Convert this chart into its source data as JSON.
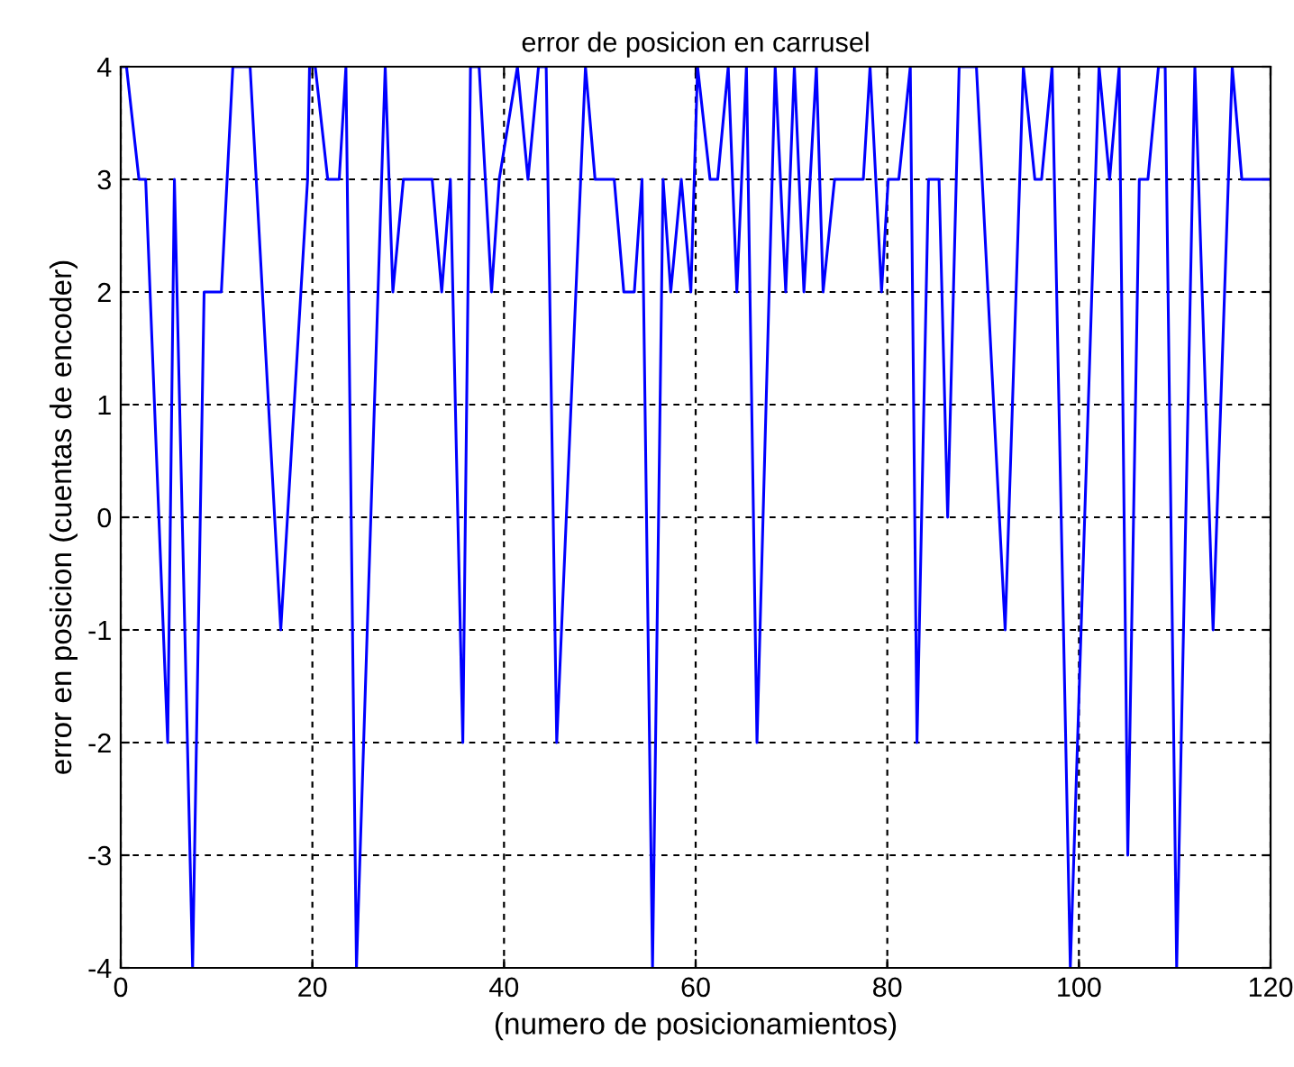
{
  "chart_data": {
    "type": "line",
    "title": "error de posicion en carrusel",
    "xlabel": "(numero de posicionamientos)",
    "ylabel": "error en posicion (cuentas de encoder)",
    "series": [
      {
        "color": "#0000ff",
        "x": [
          0,
          0.6,
          1.9,
          2.6,
          4.9,
          5.6,
          7.5,
          8.7,
          10.5,
          11.7,
          13.5,
          16.7,
          19.5,
          19.7,
          20.3,
          21.6,
          22.8,
          23.5,
          24.6,
          27.6,
          28.4,
          29.5,
          32.5,
          33.5,
          34.4,
          35.7,
          36.5,
          37.4,
          38.7,
          39.5,
          41.4,
          42.5,
          43.6,
          44.4,
          45.5,
          48.5,
          49.5,
          51.5,
          52.5,
          53.6,
          54.4,
          55.5,
          56.6,
          57.4,
          58.5,
          59.5,
          60.2,
          61.5,
          62.3,
          63.4,
          64.3,
          65.3,
          66.4,
          68.3,
          69.4,
          70.3,
          71.3,
          72.6,
          73.3,
          74.5,
          77.5,
          78.2,
          79.4,
          80.1,
          81.2,
          82.4,
          83.1,
          84.3,
          85.4,
          86.3,
          87.5,
          89.3,
          92.3,
          94.2,
          95.4,
          96.1,
          97.2,
          99.1,
          102.1,
          103.2,
          104.2,
          105.1,
          106.3,
          107.2,
          108.3,
          109.0,
          110.2,
          112.1,
          114.0,
          116.0,
          117.0,
          120
        ],
        "values": [
          4,
          4,
          3,
          3,
          -2,
          3,
          -4,
          2,
          2,
          4,
          4,
          -1,
          3,
          4,
          4,
          3,
          3,
          4,
          -4,
          4,
          2,
          3,
          3,
          2,
          3,
          -2,
          4,
          4,
          2,
          3,
          4,
          3,
          4,
          4,
          -2,
          4,
          3,
          3,
          2,
          2,
          3,
          -4,
          3,
          2,
          3,
          2,
          4,
          3,
          3,
          4,
          2,
          4,
          -2,
          4,
          2,
          4,
          2,
          4,
          2,
          3,
          3,
          4,
          2,
          3,
          3,
          4,
          -2,
          3,
          3,
          0,
          4,
          4,
          -1,
          4,
          3,
          3,
          4,
          -4,
          4,
          3,
          4,
          -3,
          3,
          3,
          4,
          4,
          -4,
          4,
          -1,
          4,
          3,
          3
        ]
      }
    ],
    "xlim": [
      0,
      120
    ],
    "xticks": [
      0,
      20,
      40,
      60,
      80,
      100,
      120
    ],
    "ylim": [
      -4,
      4
    ],
    "yticks": [
      -4,
      -3,
      -2,
      -1,
      0,
      1,
      2,
      3,
      4
    ],
    "grid": true,
    "line_style": "solid",
    "marker": "none"
  }
}
